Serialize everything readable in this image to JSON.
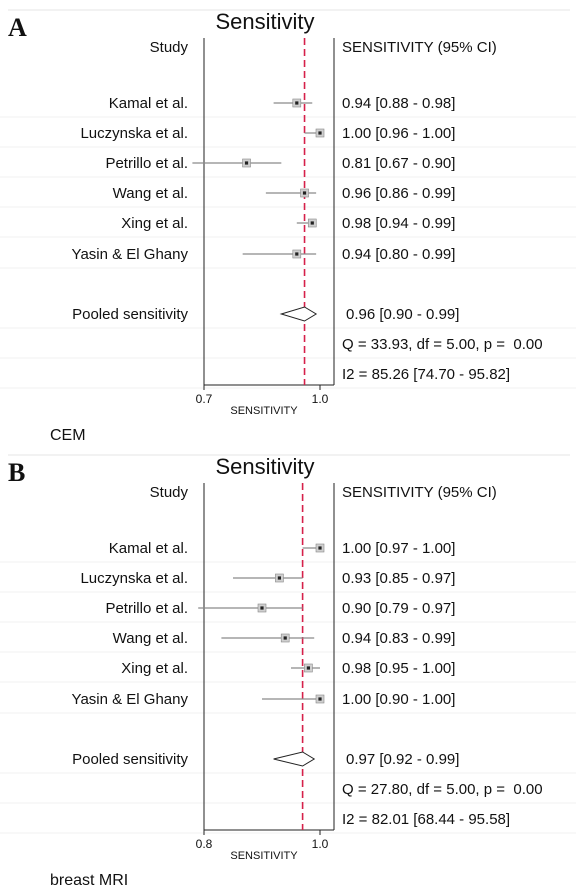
{
  "chart_data": [
    {
      "type": "forest",
      "panel_letter": "A",
      "title": "Sensitivity",
      "study_header": "Study",
      "ci_header": "SENSITIVITY (95% CI)",
      "xlabel": "SENSITIVITY",
      "x_ticks": [
        "0.7",
        "1.0"
      ],
      "xlim": [
        0.7,
        1.0
      ],
      "pooled_line": 0.96,
      "studies": [
        {
          "label": "Kamal et al.",
          "value": 0.94,
          "lo": 0.88,
          "hi": 0.98,
          "ci_text": "0.94 [0.88 - 0.98]"
        },
        {
          "label": "Luczynska et al.",
          "value": 1.0,
          "lo": 0.96,
          "hi": 1.0,
          "ci_text": "1.00 [0.96 - 1.00]"
        },
        {
          "label": "Petrillo et al.",
          "value": 0.81,
          "lo": 0.67,
          "hi": 0.9,
          "ci_text": "0.81 [0.67 - 0.90]"
        },
        {
          "label": "Wang et al.",
          "value": 0.96,
          "lo": 0.86,
          "hi": 0.99,
          "ci_text": "0.96 [0.86 - 0.99]"
        },
        {
          "label": "Xing et al.",
          "value": 0.98,
          "lo": 0.94,
          "hi": 0.99,
          "ci_text": "0.98 [0.94 - 0.99]"
        },
        {
          "label": "Yasin & El Ghany",
          "value": 0.94,
          "lo": 0.8,
          "hi": 0.99,
          "ci_text": "0.94 [0.80 - 0.99]"
        }
      ],
      "pooled": {
        "label": "Pooled sensitivity",
        "value": 0.96,
        "lo": 0.9,
        "hi": 0.99,
        "ci_text": "0.96 [0.90 - 0.99]"
      },
      "stats": [
        "Q = 33.93, df = 5.00, p =  0.00",
        "I2 = 85.26 [74.70 - 95.82]"
      ],
      "caption": "CEM"
    },
    {
      "type": "forest",
      "panel_letter": "B",
      "title": "Sensitivity",
      "study_header": "Study",
      "ci_header": "SENSITIVITY (95% CI)",
      "xlabel": "SENSITIVITY",
      "x_ticks": [
        "0.8",
        "1.0"
      ],
      "xlim": [
        0.8,
        1.0
      ],
      "pooled_line": 0.97,
      "studies": [
        {
          "label": "Kamal et al.",
          "value": 1.0,
          "lo": 0.97,
          "hi": 1.0,
          "ci_text": "1.00 [0.97 - 1.00]"
        },
        {
          "label": "Luczynska et al.",
          "value": 0.93,
          "lo": 0.85,
          "hi": 0.97,
          "ci_text": "0.93 [0.85 - 0.97]"
        },
        {
          "label": "Petrillo et al.",
          "value": 0.9,
          "lo": 0.79,
          "hi": 0.97,
          "ci_text": "0.90 [0.79 - 0.97]"
        },
        {
          "label": "Wang et al.",
          "value": 0.94,
          "lo": 0.83,
          "hi": 0.99,
          "ci_text": "0.94 [0.83 - 0.99]"
        },
        {
          "label": "Xing et al.",
          "value": 0.98,
          "lo": 0.95,
          "hi": 1.0,
          "ci_text": "0.98 [0.95 - 1.00]"
        },
        {
          "label": "Yasin & El Ghany",
          "value": 1.0,
          "lo": 0.9,
          "hi": 1.0,
          "ci_text": "1.00 [0.90 - 1.00]"
        }
      ],
      "pooled": {
        "label": "Pooled sensitivity",
        "value": 0.97,
        "lo": 0.92,
        "hi": 0.99,
        "ci_text": "0.97 [0.92 - 0.99]"
      },
      "stats": [
        "Q = 27.80, df = 5.00, p =  0.00",
        "I2 = 82.01 [68.44 - 95.58]"
      ],
      "caption": "breast MRI"
    }
  ],
  "colors": {
    "ref_line": "#d6204a",
    "ci_line": "#8a8a8a",
    "marker_fill": "#cfcfcf",
    "marker_core": "#222222",
    "grid_line": "#e6e6e6"
  }
}
